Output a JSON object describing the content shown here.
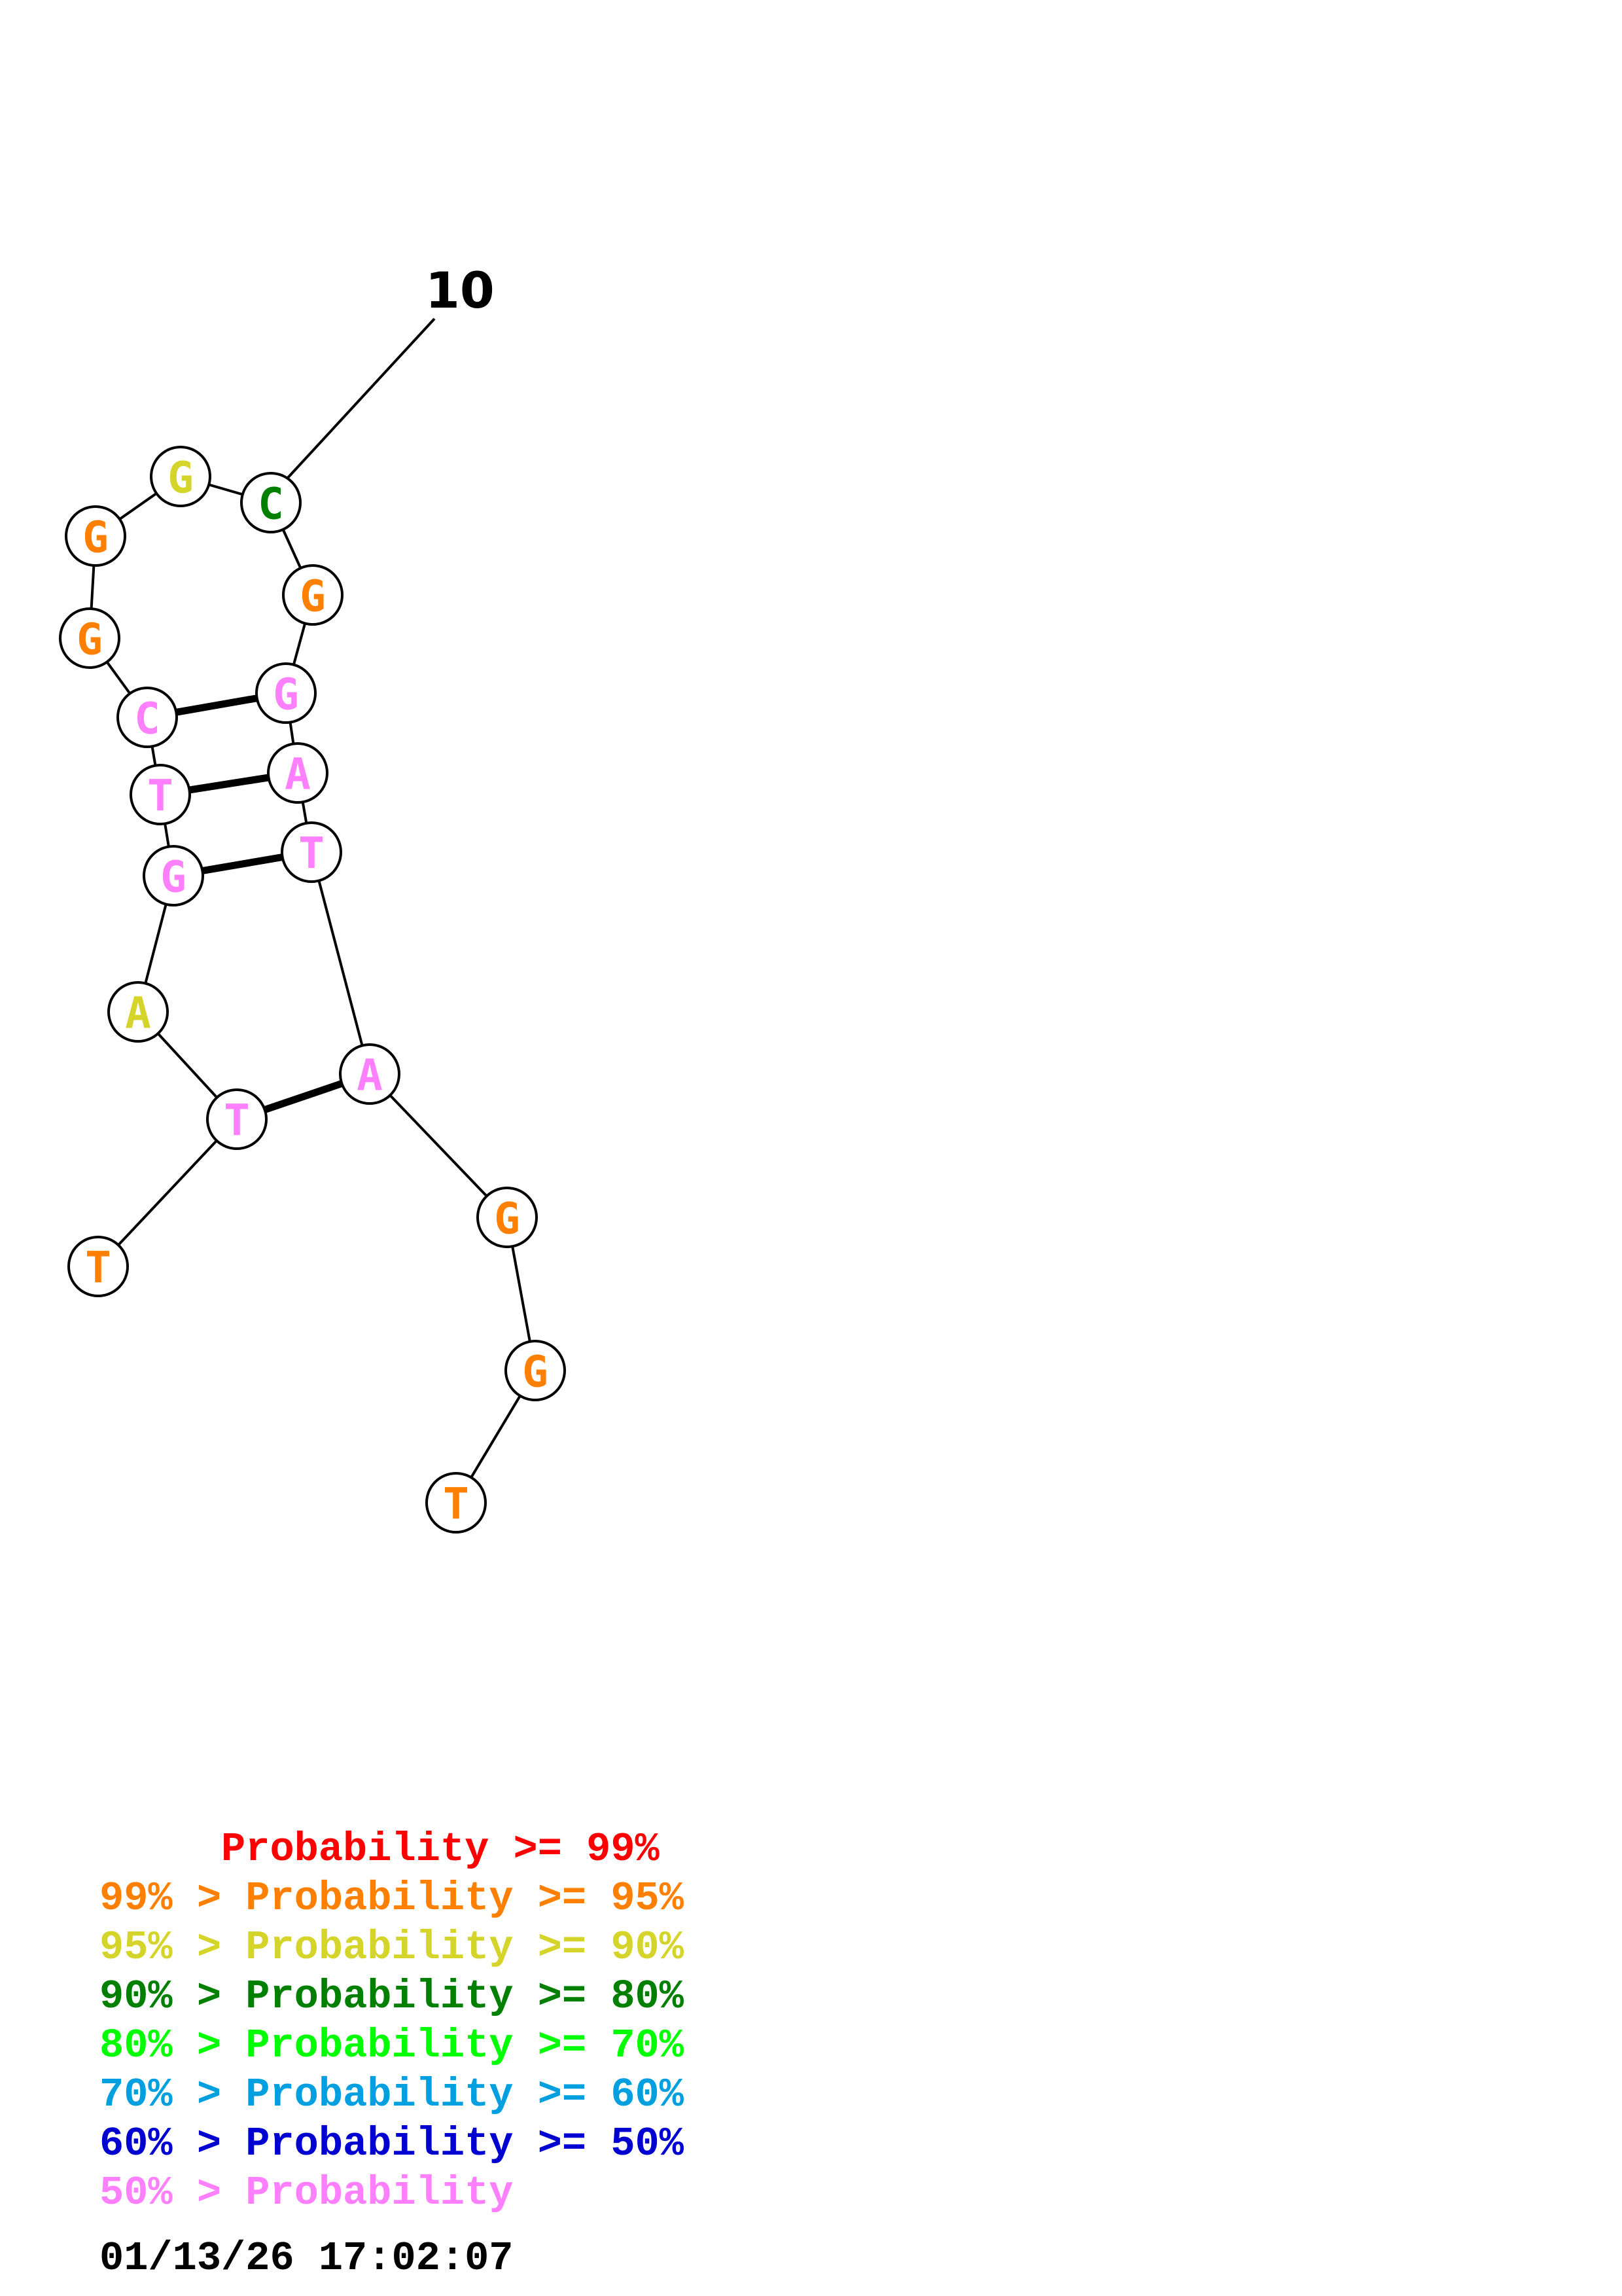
{
  "structure": {
    "index_label": "10",
    "nucleotides": [
      {
        "letter": "T",
        "color": "#ff7f00"
      },
      {
        "letter": "T",
        "color": "#ff80ff"
      },
      {
        "letter": "A",
        "color": "#d4d42a"
      },
      {
        "letter": "G",
        "color": "#ff80ff"
      },
      {
        "letter": "T",
        "color": "#ff80ff"
      },
      {
        "letter": "C",
        "color": "#ff80ff"
      },
      {
        "letter": "G",
        "color": "#ff7f00"
      },
      {
        "letter": "G",
        "color": "#ff7f00"
      },
      {
        "letter": "G",
        "color": "#d4d42a"
      },
      {
        "letter": "C",
        "color": "#007f00"
      },
      {
        "letter": "G",
        "color": "#ff7f00"
      },
      {
        "letter": "G",
        "color": "#ff80ff"
      },
      {
        "letter": "A",
        "color": "#ff80ff"
      },
      {
        "letter": "T",
        "color": "#ff80ff"
      },
      {
        "letter": "A",
        "color": "#ff80ff"
      },
      {
        "letter": "G",
        "color": "#ff7f00"
      },
      {
        "letter": "G",
        "color": "#ff7f00"
      },
      {
        "letter": "T",
        "color": "#ff7f00"
      }
    ],
    "pairs": [
      [
        2,
        15
      ],
      [
        4,
        14
      ],
      [
        5,
        13
      ],
      [
        6,
        12
      ]
    ]
  },
  "legend": {
    "entries": [
      {
        "text": "     Probability >= 99%",
        "color": "#ff0000"
      },
      {
        "text": "99% > Probability >= 95%",
        "color": "#ff7f00"
      },
      {
        "text": "95% > Probability >= 90%",
        "color": "#d4d42a"
      },
      {
        "text": "90% > Probability >= 80%",
        "color": "#007f00"
      },
      {
        "text": "80% > Probability >= 70%",
        "color": "#00ff00"
      },
      {
        "text": "70% > Probability >= 60%",
        "color": "#00a0e0"
      },
      {
        "text": "60% > Probability >= 50%",
        "color": "#0000d0"
      },
      {
        "text": "50% > Probability",
        "color": "#ff80ff"
      }
    ],
    "timestamp": "01/13/26 17:02:07"
  }
}
